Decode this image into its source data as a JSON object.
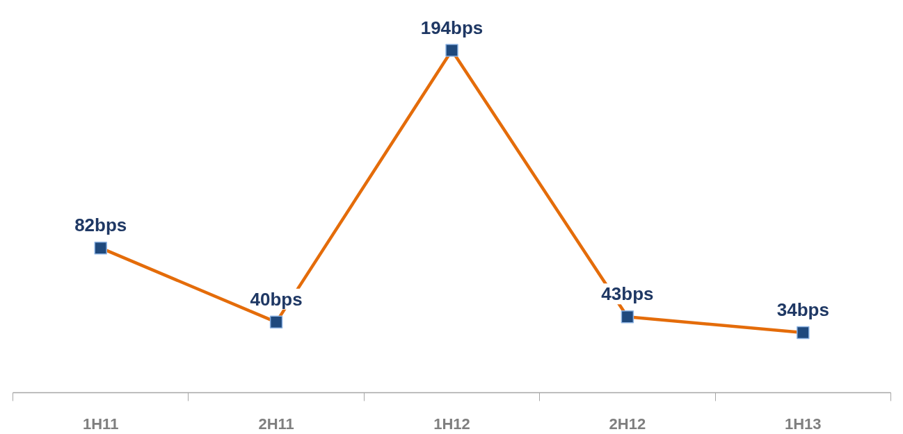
{
  "chart_data": {
    "type": "line",
    "categories": [
      "1H11",
      "2H11",
      "1H12",
      "2H12",
      "1H13"
    ],
    "series": [
      {
        "color": "#e46c0a",
        "values": [
          82,
          40,
          194,
          43,
          34
        ],
        "value_labels": [
          "82bps",
          "40bps",
          "194bps",
          "43bps",
          "34bps"
        ]
      }
    ],
    "marker": "square",
    "line_style": "solid",
    "grid": false
  }
}
